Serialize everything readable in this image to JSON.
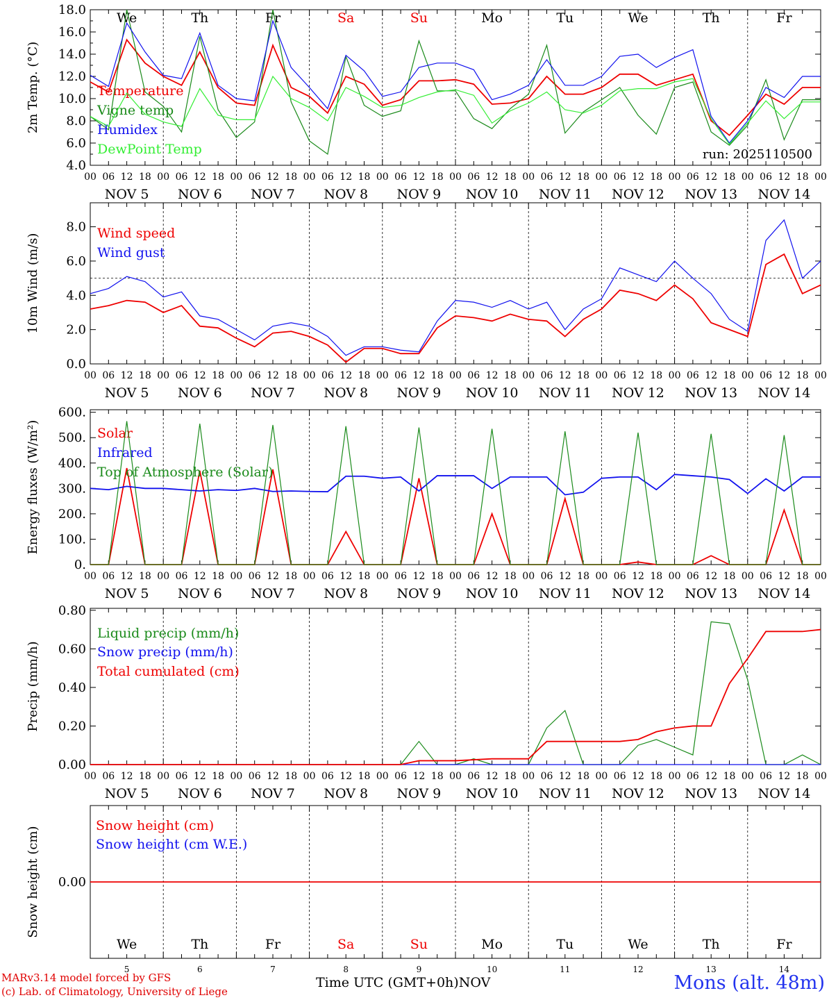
{
  "footer": {
    "credit1": "MARv3.14 model forced by GFS",
    "credit2": "(c) Lab. of Climatology, University of Liege",
    "xlabel": "Time UTC (GMT+0h)",
    "month": "NOV",
    "station": "Mons (alt. 48m)"
  },
  "colors": {
    "red": "#ee0000",
    "green": "#1a8a1a",
    "blue": "#1111ee",
    "lightgreen": "#33ee33"
  },
  "chart_data": {
    "type": "line",
    "days": [
      "We",
      "Th",
      "Fr",
      "Sa",
      "Su",
      "Mo",
      "Tu",
      "We",
      "Th",
      "Fr"
    ],
    "weekend_days": [
      "Sa",
      "Su"
    ],
    "dates": [
      "5",
      "6",
      "7",
      "8",
      "9",
      "10",
      "11",
      "12",
      "13",
      "14"
    ],
    "date_labels": [
      "NOV  5",
      "NOV  6",
      "NOV  7",
      "NOV  8",
      "NOV  9",
      "NOV 10",
      "NOV 11",
      "NOV 12",
      "NOV 13",
      "NOV 14"
    ],
    "hour_ticks": [
      "00",
      "06",
      "12",
      "18"
    ],
    "x_hours": [
      0,
      6,
      12,
      18,
      24,
      30,
      36,
      42,
      48,
      54,
      60,
      66,
      72,
      78,
      84,
      90,
      96,
      102,
      108,
      114,
      120,
      126,
      132,
      138,
      144,
      150,
      156,
      162,
      168,
      174,
      180,
      186,
      192,
      198,
      204,
      210,
      216,
      222,
      228,
      234,
      240
    ],
    "panels": [
      {
        "id": "temp",
        "ylabel": "2m Temp. (°C)",
        "ylim": [
          4,
          18
        ],
        "yticks": [
          "4.0",
          "6.0",
          "8.0",
          "10.0",
          "12.0",
          "14.0",
          "16.0",
          "18.0"
        ],
        "show_days": true,
        "run": "run: 2025110500",
        "series": [
          {
            "name": "Temperature",
            "color": "red",
            "values": [
              11.5,
              10.6,
              15.3,
              13.2,
              12.0,
              11.2,
              14.2,
              11.0,
              9.6,
              9.4,
              14.8,
              11.0,
              10.2,
              8.7,
              12.0,
              11.3,
              9.4,
              9.9,
              11.6,
              11.6,
              11.7,
              11.3,
              9.5,
              9.6,
              10.0,
              12.0,
              10.4,
              10.4,
              11.0,
              12.2,
              12.2,
              11.2,
              11.7,
              12.2,
              8.0,
              6.7,
              8.5,
              10.4,
              9.5,
              11.0,
              11.0
            ]
          },
          {
            "name": "Vigne temp",
            "color": "green",
            "values": [
              8.4,
              7.2,
              18.0,
              10.6,
              9.3,
              7.0,
              15.6,
              9.0,
              6.5,
              7.9,
              18.0,
              9.7,
              6.2,
              5.0,
              13.8,
              9.4,
              8.4,
              8.9,
              15.2,
              10.7,
              10.7,
              8.2,
              7.3,
              9.1,
              10.4,
              14.8,
              6.9,
              8.8,
              9.9,
              11.0,
              8.5,
              6.8,
              11.0,
              11.5,
              7.0,
              5.8,
              7.6,
              11.7,
              6.3,
              9.9,
              9.9
            ]
          },
          {
            "name": "Humidex",
            "color": "blue",
            "values": [
              12.1,
              11.1,
              16.8,
              14.2,
              12.1,
              11.8,
              15.9,
              11.2,
              10.0,
              9.8,
              17.0,
              12.8,
              11.0,
              9.1,
              13.9,
              12.5,
              10.2,
              10.6,
              12.8,
              13.2,
              13.2,
              12.6,
              9.9,
              10.4,
              11.2,
              13.5,
              11.2,
              11.2,
              12.0,
              13.8,
              14.0,
              12.8,
              13.7,
              14.4,
              8.4,
              6.0,
              8.0,
              11.0,
              10.1,
              12.0,
              12.0
            ]
          },
          {
            "name": "DewPoint Temp",
            "color": "lightgreen",
            "values": [
              8.4,
              7.5,
              10.5,
              8.6,
              7.9,
              7.5,
              10.9,
              8.5,
              8.1,
              8.1,
              12.0,
              10.0,
              9.2,
              8.0,
              11.0,
              10.2,
              9.2,
              9.4,
              10.1,
              10.6,
              10.8,
              10.3,
              7.8,
              8.9,
              9.6,
              10.6,
              9.0,
              8.7,
              9.4,
              10.7,
              10.9,
              10.9,
              11.5,
              11.8,
              8.2,
              5.9,
              7.8,
              9.8,
              8.2,
              9.7,
              9.7
            ]
          }
        ]
      },
      {
        "id": "wind",
        "ylabel": "10m Wind (m/s)",
        "ylim": [
          0,
          9.4
        ],
        "yticks": [
          "0.0",
          "2.0",
          "4.0",
          "6.0",
          "8.0"
        ],
        "ref_line": 5,
        "show_days": false,
        "series": [
          {
            "name": "Wind speed",
            "color": "red",
            "values": [
              3.2,
              3.4,
              3.7,
              3.6,
              3.0,
              3.4,
              2.2,
              2.1,
              1.5,
              1.0,
              1.8,
              1.9,
              1.6,
              1.1,
              0.1,
              0.9,
              0.9,
              0.6,
              0.6,
              2.1,
              2.8,
              2.7,
              2.5,
              2.9,
              2.6,
              2.5,
              1.6,
              2.6,
              3.2,
              4.3,
              4.1,
              3.7,
              4.6,
              3.8,
              2.4,
              2.0,
              1.6,
              5.8,
              6.4,
              4.1,
              4.6
            ]
          },
          {
            "name": "Wind gust",
            "color": "blue",
            "values": [
              4.1,
              4.4,
              5.1,
              4.8,
              3.9,
              4.2,
              2.8,
              2.6,
              2.0,
              1.4,
              2.2,
              2.4,
              2.2,
              1.6,
              0.5,
              1.0,
              1.0,
              0.8,
              0.7,
              2.5,
              3.7,
              3.6,
              3.3,
              3.7,
              3.2,
              3.6,
              2.0,
              3.2,
              3.8,
              5.6,
              5.2,
              4.8,
              6.0,
              5.0,
              4.1,
              2.6,
              1.9,
              7.2,
              8.4,
              5.0,
              6.0
            ]
          }
        ]
      },
      {
        "id": "energy",
        "ylabel": "Energy fluxes (W/m²)",
        "ylim": [
          0,
          610
        ],
        "yticks": [
          "0.",
          "100.",
          "200.",
          "300.",
          "400.",
          "500.",
          "600."
        ],
        "show_days": false,
        "series": [
          {
            "name": "Solar",
            "color": "red",
            "values": [
              0,
              0,
              380,
              0,
              0,
              0,
              370,
              0,
              0,
              0,
              375,
              0,
              0,
              0,
              130,
              0,
              0,
              0,
              340,
              0,
              0,
              0,
              200,
              0,
              0,
              0,
              260,
              0,
              0,
              0,
              10,
              0,
              0,
              0,
              35,
              0,
              0,
              0,
              215,
              0,
              0
            ]
          },
          {
            "name": "Infrared",
            "color": "blue",
            "values": [
              300,
              295,
              308,
              300,
              300,
              295,
              290,
              295,
              292,
              300,
              288,
              290,
              288,
              287,
              348,
              348,
              340,
              345,
              290,
              350,
              350,
              350,
              300,
              345,
              345,
              345,
              275,
              285,
              340,
              345,
              345,
              295,
              355,
              350,
              345,
              335,
              280,
              338,
              290,
              345,
              345
            ]
          },
          {
            "name": "Top of Atmosphere (Solar)",
            "color": "green",
            "values": [
              0,
              0,
              565,
              0,
              0,
              0,
              555,
              0,
              0,
              0,
              550,
              0,
              0,
              0,
              545,
              0,
              0,
              0,
              540,
              0,
              0,
              0,
              535,
              0,
              0,
              0,
              525,
              0,
              0,
              0,
              520,
              0,
              0,
              0,
              515,
              0,
              0,
              0,
              510,
              0,
              0
            ]
          }
        ]
      },
      {
        "id": "precip",
        "ylabel": "Precip (mm/h)",
        "ylim": [
          0,
          0.81
        ],
        "yticks": [
          "0.00",
          "0.20",
          "0.40",
          "0.60",
          "0.80"
        ],
        "show_days": false,
        "series": [
          {
            "name": "Liquid precip (mm/h)",
            "color": "green",
            "values": [
              0,
              0,
              0,
              0,
              0,
              0,
              0,
              0,
              0,
              0,
              0,
              0,
              0,
              0,
              0,
              0,
              0,
              0,
              0.12,
              0,
              0,
              0.03,
              0,
              0,
              0,
              0.19,
              0.28,
              0,
              0,
              0,
              0.1,
              0.13,
              0.09,
              0.05,
              0.74,
              0.73,
              0.44,
              0,
              0,
              0.05,
              0
            ]
          },
          {
            "name": "Snow precip (mm/h)",
            "color": "blue",
            "values": [
              0,
              0,
              0,
              0,
              0,
              0,
              0,
              0,
              0,
              0,
              0,
              0,
              0,
              0,
              0,
              0,
              0,
              0,
              0,
              0,
              0,
              0,
              0,
              0,
              0,
              0,
              0,
              0,
              0,
              0,
              0,
              0,
              0,
              0,
              0,
              0,
              0,
              0,
              0,
              0,
              0
            ]
          },
          {
            "name": "Total cumulated (cm)",
            "color": "red",
            "values": [
              0,
              0,
              0,
              0,
              0,
              0,
              0,
              0,
              0,
              0,
              0,
              0,
              0,
              0,
              0,
              0,
              0,
              0,
              0.02,
              0.02,
              0.02,
              0.025,
              0.03,
              0.03,
              0.03,
              0.12,
              0.12,
              0.12,
              0.12,
              0.12,
              0.13,
              0.17,
              0.19,
              0.2,
              0.2,
              0.42,
              0.55,
              0.69,
              0.69,
              0.69,
              0.7
            ]
          }
        ]
      },
      {
        "id": "snow",
        "ylabel": "Snow height (cm)",
        "ylim": [
          -1,
          1
        ],
        "yticks": [
          "0.00"
        ],
        "show_days": true,
        "days_bottom": true,
        "series": [
          {
            "name": "Snow height (cm)",
            "color": "red",
            "values": [
              0,
              0,
              0,
              0,
              0,
              0,
              0,
              0,
              0,
              0,
              0,
              0,
              0,
              0,
              0,
              0,
              0,
              0,
              0,
              0,
              0,
              0,
              0,
              0,
              0,
              0,
              0,
              0,
              0,
              0,
              0,
              0,
              0,
              0,
              0,
              0,
              0,
              0,
              0,
              0,
              0
            ]
          },
          {
            "name": "Snow height (cm W.E.)",
            "color": "blue",
            "values": []
          }
        ]
      }
    ]
  }
}
